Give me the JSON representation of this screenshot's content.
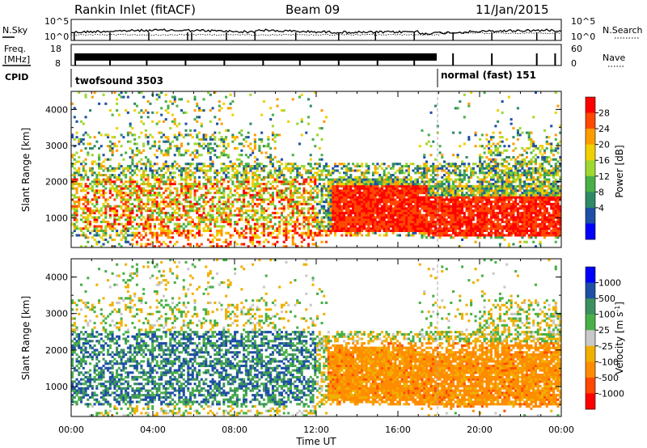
{
  "header": {
    "station": "Rankin Inlet (fitACF)",
    "beam": "Beam 09",
    "date": "11/Jan/2015"
  },
  "noise_panel": {
    "left_label": "N.Sky",
    "right_label": "N.Search",
    "ytick_top": "10^5",
    "ytick_bottom": "10^0"
  },
  "freq_panel": {
    "left_label_line1": "Freq.",
    "left_label_line2": "[MHz]",
    "right_label": "Nave",
    "ytick_left_top": "18",
    "ytick_left_bottom": "8",
    "ytick_right_top": "60",
    "ytick_right_bottom": "0"
  },
  "cpid_panel": {
    "label": "CPID",
    "segments": [
      {
        "text": "twofsound 3503",
        "start_hour": 0,
        "end_hour": 18
      },
      {
        "text": "normal (fast) 151",
        "start_hour": 18,
        "end_hour": 24
      }
    ]
  },
  "colors": {
    "power": [
      "#0000ff",
      "#1e4fa6",
      "#2e8a66",
      "#48b048",
      "#9ed830",
      "#f0d000",
      "#ff9c00",
      "#ff4800",
      "#ff0000"
    ],
    "velocity": [
      "#ff0000",
      "#ff4800",
      "#ff8c00",
      "#f0b000",
      "#c8c8c8",
      "#48b048",
      "#3c9060",
      "#1e4fa6",
      "#0000ff"
    ]
  },
  "chart_data": [
    {
      "type": "heatmap",
      "name": "power",
      "ylabel": "Slant Range [km]",
      "ylim": [
        180,
        4500
      ],
      "xlim": [
        0,
        24
      ],
      "yticks": [
        "1000",
        "2000",
        "3000",
        "4000"
      ],
      "xticks": [
        "00:00",
        "04:00",
        "08:00",
        "12:00",
        "16:00",
        "20:00",
        "00:00"
      ],
      "colorbar_label": "Power [dB]",
      "colorbar_ticks": [
        "4",
        "8",
        "12",
        "16",
        "20",
        "24",
        "28"
      ]
    },
    {
      "type": "heatmap",
      "name": "velocity",
      "ylabel": "Slant Range [km]",
      "ylim": [
        180,
        4500
      ],
      "xlim": [
        0,
        24
      ],
      "xlabel": "Time UT",
      "yticks": [
        "1000",
        "2000",
        "3000",
        "4000"
      ],
      "xticks": [
        "00:00",
        "04:00",
        "08:00",
        "12:00",
        "16:00",
        "20:00",
        "00:00"
      ],
      "colorbar_label": "Velocity [m s^-1]",
      "colorbar_ticks": [
        "1000",
        "500",
        "100",
        "25",
        "-25",
        "-100",
        "-500",
        "-1000"
      ]
    }
  ]
}
